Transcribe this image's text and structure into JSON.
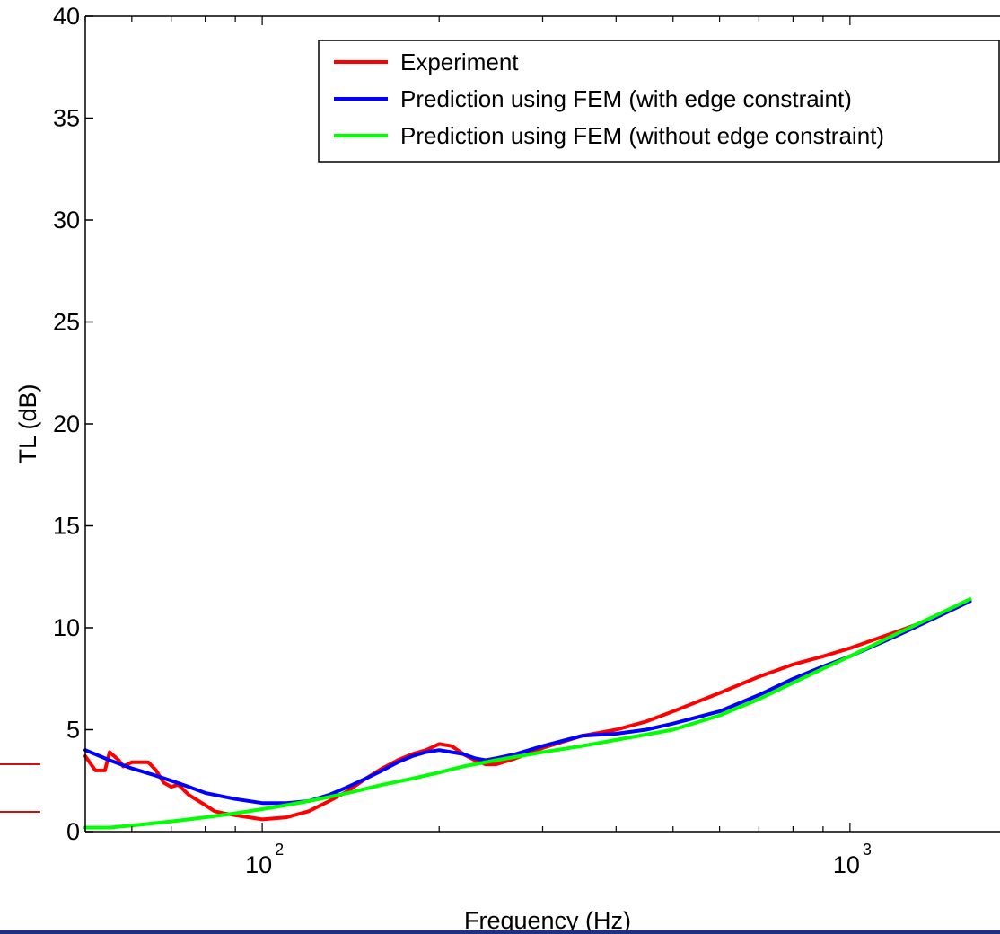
{
  "chart_data": {
    "type": "line",
    "title": "",
    "xlabel": "Frequency (Hz)",
    "ylabel": "TL (dB)",
    "x_scale": "log",
    "xlim": [
      50,
      1800
    ],
    "ylim": [
      0,
      40
    ],
    "x_ticks": [
      100,
      1000
    ],
    "x_tick_labels": [
      {
        "base": "10",
        "exp": "2"
      },
      {
        "base": "10",
        "exp": "3"
      }
    ],
    "y_ticks": [
      0,
      5,
      10,
      15,
      20,
      25,
      30,
      35,
      40
    ],
    "y_tick_labels": [
      "0",
      "5",
      "10",
      "15",
      "20",
      "25",
      "30",
      "35",
      "40"
    ],
    "grid": false,
    "legend_position": "top-right",
    "series": [
      {
        "name": "Experiment",
        "color": "#ff0000",
        "x": [
          50,
          52,
          54,
          55,
          57,
          58,
          60,
          62,
          64,
          66,
          68,
          70,
          72,
          75,
          78,
          80,
          83,
          86,
          90,
          95,
          100,
          110,
          120,
          130,
          140,
          150,
          160,
          170,
          180,
          190,
          200,
          210,
          220,
          230,
          240,
          250,
          270,
          300,
          350,
          400,
          450,
          500,
          600,
          700,
          800,
          900,
          1000,
          1200,
          1400,
          1600
        ],
        "y": [
          3.7,
          3.0,
          3.0,
          3.9,
          3.5,
          3.2,
          3.4,
          3.4,
          3.4,
          3.0,
          2.4,
          2.2,
          2.3,
          1.8,
          1.5,
          1.3,
          1.0,
          0.9,
          0.8,
          0.7,
          0.6,
          0.7,
          1.0,
          1.5,
          2.0,
          2.6,
          3.1,
          3.5,
          3.8,
          4.0,
          4.3,
          4.2,
          3.8,
          3.5,
          3.3,
          3.3,
          3.6,
          4.1,
          4.7,
          5.0,
          5.4,
          5.9,
          6.8,
          7.6,
          8.2,
          8.6,
          9.0,
          9.8,
          10.5,
          11.3
        ]
      },
      {
        "name": "Prediction using FEM (with edge constraint)",
        "color": "#0000ff",
        "x": [
          50,
          55,
          60,
          65,
          70,
          75,
          80,
          90,
          100,
          110,
          120,
          130,
          140,
          150,
          160,
          170,
          180,
          190,
          200,
          210,
          220,
          230,
          240,
          250,
          270,
          300,
          350,
          400,
          450,
          500,
          600,
          700,
          800,
          900,
          1000,
          1200,
          1400,
          1600
        ],
        "y": [
          4.0,
          3.5,
          3.1,
          2.8,
          2.5,
          2.2,
          1.9,
          1.6,
          1.4,
          1.4,
          1.5,
          1.8,
          2.2,
          2.6,
          3.0,
          3.4,
          3.7,
          3.9,
          4.0,
          3.9,
          3.8,
          3.6,
          3.5,
          3.6,
          3.8,
          4.2,
          4.7,
          4.8,
          5.0,
          5.3,
          5.9,
          6.7,
          7.5,
          8.1,
          8.6,
          9.6,
          10.5,
          11.3
        ]
      },
      {
        "name": "Prediction using FEM (without edge constraint)",
        "color": "#00ff00",
        "x": [
          50,
          55,
          60,
          65,
          70,
          75,
          80,
          90,
          100,
          110,
          120,
          130,
          140,
          150,
          160,
          180,
          200,
          220,
          250,
          300,
          350,
          400,
          500,
          600,
          700,
          800,
          900,
          1000,
          1200,
          1400,
          1600
        ],
        "y": [
          0.2,
          0.2,
          0.3,
          0.4,
          0.5,
          0.6,
          0.7,
          0.9,
          1.1,
          1.3,
          1.5,
          1.7,
          1.9,
          2.1,
          2.3,
          2.6,
          2.9,
          3.2,
          3.5,
          3.9,
          4.2,
          4.5,
          5.0,
          5.7,
          6.5,
          7.3,
          8.0,
          8.6,
          9.7,
          10.6,
          11.4
        ]
      }
    ]
  }
}
